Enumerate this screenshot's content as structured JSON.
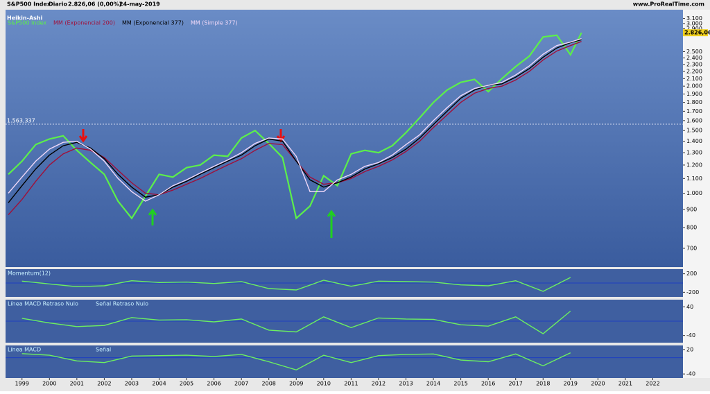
{
  "header": {
    "title": "S&P500 Index",
    "period": "Diario",
    "quote": "2.826,06 (0,00%)",
    "date": "24-may-2019",
    "site": "www.ProRealTime.com",
    "style": "Heikin-Ashi"
  },
  "chart_data": [
    {
      "type": "line",
      "log_scale": true,
      "xlim": [
        1998.4,
        2023.1
      ],
      "ylim": [
        620,
        3280
      ],
      "xticks": [
        1999,
        2000,
        2001,
        2002,
        2003,
        2004,
        2005,
        2006,
        2007,
        2008,
        2009,
        2010,
        2011,
        2012,
        2013,
        2014,
        2015,
        2016,
        2017,
        2018,
        2019,
        2020,
        2021,
        2022
      ],
      "yticks": [
        {
          "value": 700,
          "label": "700"
        },
        {
          "value": 800,
          "label": "800"
        },
        {
          "value": 900,
          "label": "900"
        },
        {
          "value": 1000,
          "label": "1.000"
        },
        {
          "value": 1100,
          "label": "1.100"
        },
        {
          "value": 1200,
          "label": "1.200"
        },
        {
          "value": 1300,
          "label": "1.300"
        },
        {
          "value": 1400,
          "label": "1.400"
        },
        {
          "value": 1500,
          "label": "1.500"
        },
        {
          "value": 1600,
          "label": "1.600"
        },
        {
          "value": 1700,
          "label": "1.700"
        },
        {
          "value": 1800,
          "label": "1.800"
        },
        {
          "value": 1900,
          "label": "1.900"
        },
        {
          "value": 2000,
          "label": "2.000"
        },
        {
          "value": 2100,
          "label": "2.100"
        },
        {
          "value": 2200,
          "label": "2.200"
        },
        {
          "value": 2300,
          "label": "2.300"
        },
        {
          "value": 2400,
          "label": "2.400"
        },
        {
          "value": 2500,
          "label": "2.500"
        },
        {
          "value": 2800,
          "label": "2.800"
        },
        {
          "value": 2900,
          "label": "2.900"
        },
        {
          "value": 3000,
          "label": "3.000"
        },
        {
          "value": 3100,
          "label": "3.100"
        }
      ],
      "level": {
        "value": 1563.337,
        "label": "1.563,337"
      },
      "last_price": {
        "value": 2826.06,
        "label": "2.826,06"
      },
      "x": [
        1998.5,
        1999,
        1999.5,
        2000,
        2000.5,
        2001,
        2001.5,
        2002,
        2002.5,
        2003,
        2003.5,
        2004,
        2004.5,
        2005,
        2005.5,
        2006,
        2006.5,
        2007,
        2007.5,
        2008,
        2008.5,
        2009,
        2009.5,
        2010,
        2010.5,
        2011,
        2011.5,
        2012,
        2012.5,
        2013,
        2013.5,
        2014,
        2014.5,
        2015,
        2015.5,
        2016,
        2016.5,
        2017,
        2017.5,
        2018,
        2018.5,
        2019,
        2019.4
      ],
      "series": [
        {
          "name": "S&P500 Index",
          "color": "#5cf04a",
          "values": [
            1130,
            1230,
            1370,
            1420,
            1450,
            1320,
            1220,
            1130,
            950,
            850,
            980,
            1130,
            1110,
            1180,
            1200,
            1280,
            1270,
            1430,
            1500,
            1380,
            1260,
            850,
            920,
            1120,
            1050,
            1290,
            1320,
            1300,
            1360,
            1480,
            1630,
            1800,
            1950,
            2050,
            2090,
            1930,
            2100,
            2270,
            2430,
            2750,
            2780,
            2450,
            2826
          ]
        },
        {
          "name": "MM (Exponencial 200)",
          "color": "#a0103a",
          "values": [
            870,
            960,
            1080,
            1200,
            1290,
            1340,
            1320,
            1260,
            1160,
            1070,
            1000,
            990,
            1020,
            1060,
            1100,
            1150,
            1200,
            1250,
            1320,
            1380,
            1370,
            1230,
            1110,
            1060,
            1070,
            1100,
            1150,
            1190,
            1240,
            1310,
            1400,
            1530,
            1660,
            1800,
            1910,
            1970,
            2000,
            2080,
            2200,
            2370,
            2510,
            2600,
            2670
          ]
        },
        {
          "name": "MM (Exponencial 377)",
          "color": "#000000",
          "values": [
            940,
            1050,
            1170,
            1280,
            1360,
            1390,
            1340,
            1250,
            1130,
            1040,
            975,
            990,
            1040,
            1080,
            1130,
            1180,
            1230,
            1280,
            1360,
            1420,
            1400,
            1230,
            1090,
            1040,
            1070,
            1110,
            1170,
            1210,
            1260,
            1330,
            1430,
            1560,
            1700,
            1850,
            1950,
            2010,
            2030,
            2120,
            2240,
            2410,
            2560,
            2650,
            2700
          ]
        },
        {
          "name": "MM (Simple 377)",
          "color": "#f0d8f8",
          "values": [
            1000,
            1110,
            1230,
            1330,
            1390,
            1400,
            1330,
            1230,
            1100,
            1010,
            950,
            990,
            1050,
            1090,
            1140,
            1190,
            1240,
            1300,
            1380,
            1430,
            1420,
            1270,
            1010,
            1010,
            1090,
            1130,
            1190,
            1220,
            1280,
            1370,
            1460,
            1600,
            1740,
            1880,
            1970,
            2010,
            2050,
            2150,
            2280,
            2460,
            2600,
            2660,
            2720
          ]
        }
      ]
    },
    {
      "type": "line",
      "title": "Momentum(12)",
      "xlim": [
        1998.4,
        2023.1
      ],
      "ylim": [
        -300,
        300
      ],
      "yticks": [
        200,
        -200
      ],
      "x": [
        1999,
        2000,
        2001,
        2002,
        2003,
        2004,
        2005,
        2006,
        2007,
        2008,
        2009,
        2010,
        2011,
        2012,
        2013,
        2014,
        2015,
        2016,
        2017,
        2018,
        2019
      ],
      "series": [
        {
          "name": "Momentum",
          "color": "#6cf060",
          "values": [
            40,
            -20,
            -80,
            -60,
            50,
            10,
            20,
            -10,
            30,
            -120,
            -150,
            60,
            -70,
            40,
            30,
            20,
            -40,
            -60,
            50,
            -180,
            120
          ]
        }
      ]
    },
    {
      "type": "line",
      "title": "Línea MACD Retraso Nulo",
      "subtitle": "Señal Retraso Nulo",
      "xlim": [
        1998.4,
        2023.1
      ],
      "ylim": [
        -60,
        60
      ],
      "yticks": [
        40,
        -40
      ],
      "x": [
        1999,
        2000,
        2001,
        2002,
        2003,
        2004,
        2005,
        2006,
        2007,
        2008,
        2009,
        2010,
        2011,
        2012,
        2013,
        2014,
        2015,
        2016,
        2017,
        2018,
        2019
      ],
      "series": [
        {
          "name": "Línea MACD Retraso Nulo",
          "color": "#6cf060",
          "values": [
            8,
            -5,
            -15,
            -12,
            10,
            3,
            4,
            -2,
            6,
            -25,
            -30,
            12,
            -18,
            9,
            6,
            5,
            -10,
            -14,
            12,
            -35,
            28
          ]
        }
      ]
    },
    {
      "type": "line",
      "title": "Línea MACD",
      "subtitle": "Señal",
      "xlim": [
        1998.4,
        2023.1
      ],
      "ylim": [
        -50,
        30
      ],
      "yticks": [
        20,
        -40
      ],
      "x": [
        1999,
        2000,
        2001,
        2002,
        2003,
        2004,
        2005,
        2006,
        2007,
        2008,
        2009,
        2010,
        2011,
        2012,
        2013,
        2014,
        2015,
        2016,
        2017,
        2018,
        2019
      ],
      "series": [
        {
          "name": "Línea MACD",
          "color": "#6cf060",
          "values": [
            10,
            6,
            -8,
            -12,
            4,
            5,
            6,
            3,
            8,
            -10,
            -30,
            6,
            -12,
            5,
            8,
            9,
            -6,
            -10,
            9,
            -20,
            12
          ]
        }
      ]
    }
  ]
}
